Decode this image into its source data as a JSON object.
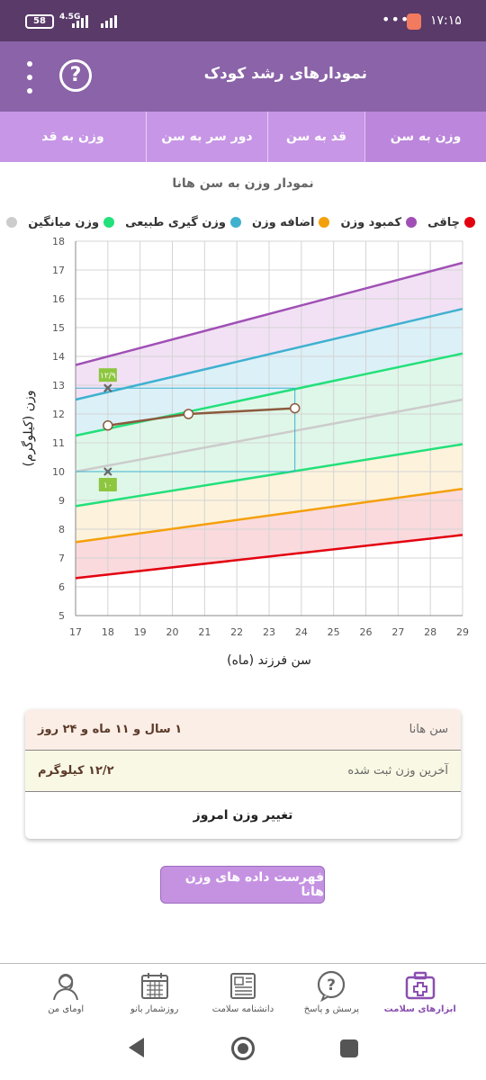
{
  "status_bar": {
    "battery": "58",
    "network": "4.5G",
    "time": "۱۷:۱۵",
    "dots": "•••"
  },
  "app_bar": {
    "title": "نمودارهای رشد کودک",
    "help_symbol": "?"
  },
  "tabs": [
    {
      "label": "وزن به سن",
      "active": true
    },
    {
      "label": "قد به سن",
      "active": false
    },
    {
      "label": "دور سر به سن",
      "active": false
    },
    {
      "label": "وزن به قد",
      "active": false
    }
  ],
  "chart_title": "نمودار وزن به سن هانا",
  "legend": [
    {
      "label": "چاقی",
      "color": "#e3000f"
    },
    {
      "label": "کمبود وزن",
      "color": "#a050b5"
    },
    {
      "label": "اضافه وزن",
      "color": "#f4a00b"
    },
    {
      "label": "وزن گیری طبیعی",
      "color": "#3fb1cf"
    },
    {
      "label": "وزن میانگین",
      "color": "#22e07a"
    },
    {
      "label": "",
      "color": "#cccccc"
    }
  ],
  "chart_data": {
    "type": "line",
    "xlabel": "سن فرزند (ماه)",
    "ylabel": "وزن (کیلوگرم)",
    "xlim": [
      17,
      29
    ],
    "ylim": [
      5,
      18
    ],
    "x_ticks": [
      "17",
      "18",
      "19",
      "20",
      "21",
      "22",
      "23",
      "24",
      "25",
      "26",
      "27",
      "28",
      "29"
    ],
    "y_ticks": [
      "5",
      "6",
      "7",
      "8",
      "9",
      "10",
      "11",
      "12",
      "13",
      "14",
      "15",
      "16",
      "17",
      "18"
    ],
    "grid": true,
    "reference_lines": [
      {
        "color": "#e3000f",
        "x": [
          17,
          29
        ],
        "y": [
          6.3,
          7.8
        ]
      },
      {
        "color": "#f4a00b",
        "x": [
          17,
          29
        ],
        "y": [
          7.55,
          9.4
        ]
      },
      {
        "color": "#22e07a",
        "x": [
          17,
          29
        ],
        "y": [
          8.8,
          10.95
        ]
      },
      {
        "color": "#cccccc",
        "x": [
          17,
          29
        ],
        "y": [
          10.0,
          12.5
        ]
      },
      {
        "color": "#22e07a",
        "x": [
          17,
          29
        ],
        "y": [
          11.25,
          14.1
        ]
      },
      {
        "color": "#3fb1cf",
        "x": [
          17,
          29
        ],
        "y": [
          12.5,
          15.65
        ]
      },
      {
        "color": "#a050b5",
        "x": [
          17,
          29
        ],
        "y": [
          13.7,
          17.25
        ]
      }
    ],
    "band_colors": [
      "#fadadd",
      "#fdf2dc",
      "#dff7e9",
      "#dff7e9",
      "#dcf0f7",
      "#f2e1f5"
    ],
    "series": [
      {
        "color": "#8b5a3c",
        "x": [
          18.0,
          20.5,
          23.8
        ],
        "y": [
          11.6,
          12.0,
          12.2
        ]
      }
    ],
    "markers": [
      {
        "x": 18,
        "y": 12.9,
        "label": "۱۲/۹"
      },
      {
        "x": 18,
        "y": 10.0,
        "label": "۱۰"
      }
    ],
    "guides": {
      "x": 23.8,
      "y_low": 10.0,
      "y_high": 12.9,
      "color": "#3fb1cf"
    }
  },
  "info": {
    "age_label": "سن هانا",
    "age_value": "۱ سال و ۱۱ ماه و ۲۴ روز",
    "weight_label": "آخرین وزن ثبت شده",
    "weight_value": "۱۲/۲ کیلوگرم",
    "change_button": "تغییر وزن امروز"
  },
  "list_button": "فهرست داده های وزن هانا",
  "bottom_nav": [
    {
      "label": "ابزارهای سلامت",
      "icon": "health-kit-icon",
      "active": true
    },
    {
      "label": "پرسش و پاسخ",
      "icon": "question-bubble-icon",
      "active": false
    },
    {
      "label": "دانشنامه سلامت",
      "icon": "encyclopedia-icon",
      "active": false
    },
    {
      "label": "روزشمار بانو",
      "icon": "calendar-icon",
      "active": false
    },
    {
      "label": "اومای من",
      "icon": "profile-icon",
      "active": false
    }
  ]
}
